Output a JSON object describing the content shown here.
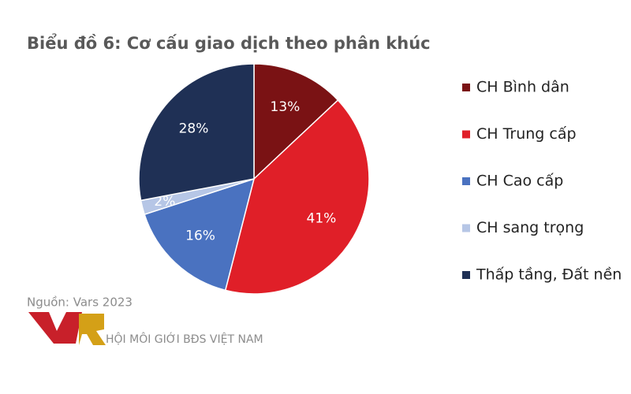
{
  "chart_data": {
    "type": "pie",
    "title": "Biểu đồ 6: Cơ cấu giao dịch theo phân khúc",
    "categories": [
      "CH Bình dân",
      "CH Trung cấp",
      "CH Cao cấp",
      "CH sang trọng",
      "Thấp tầng, Đất nền"
    ],
    "values": [
      13,
      41,
      16,
      2,
      28
    ],
    "value_labels": [
      "13%",
      "41%",
      "16%",
      "2%",
      "28%"
    ],
    "colors": [
      "#7a1214",
      "#e01f28",
      "#4a72c0",
      "#b6c6e6",
      "#1f3055"
    ],
    "legend": "right",
    "source": "Nguồn: Vars 2023",
    "logo_text": "HỘI MÔI GIỚI BĐS VIỆT NAM"
  }
}
